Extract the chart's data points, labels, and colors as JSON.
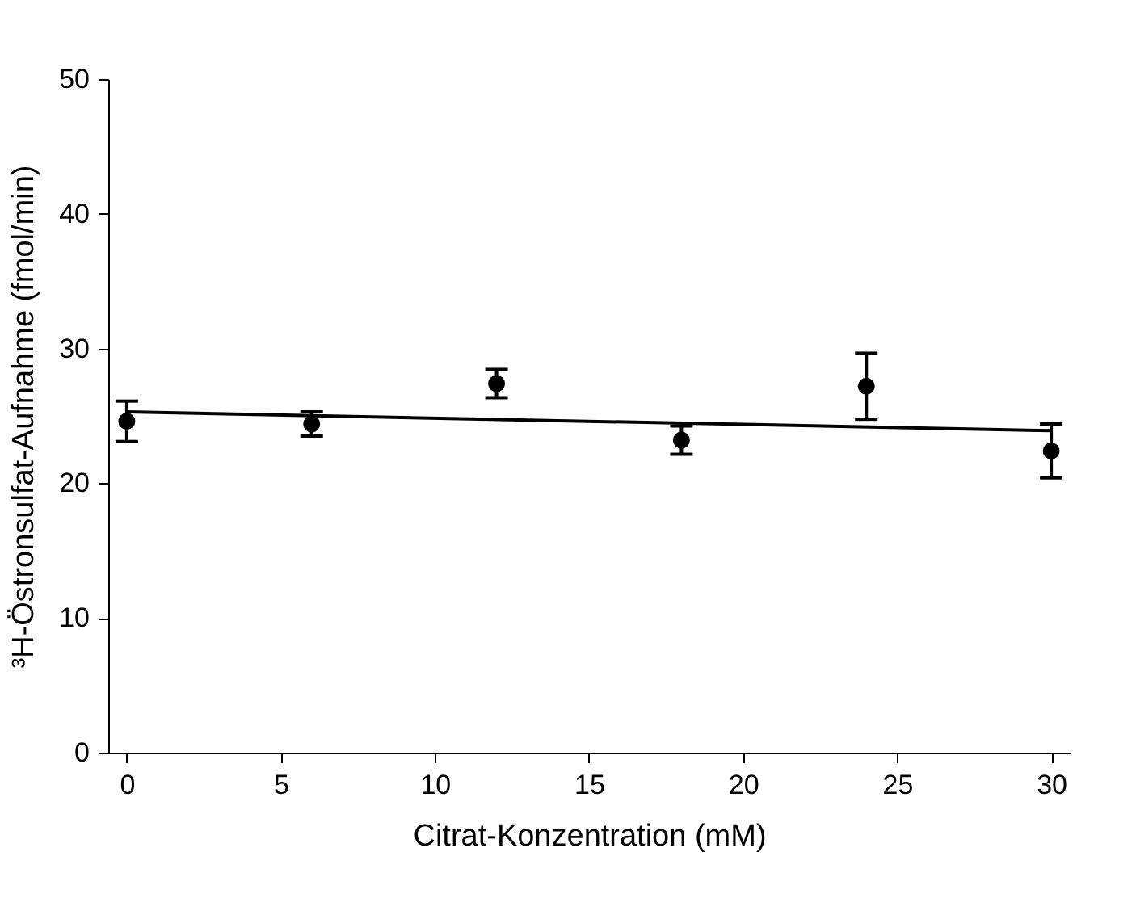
{
  "chart_data": {
    "type": "scatter",
    "xlabel": "Citrat-Konzentration (mM)",
    "ylabel": "³H-Östronsulfat-Aufnahme (fmol/min)",
    "x": [
      0,
      6,
      12,
      18,
      24,
      30
    ],
    "series": [
      {
        "color": "#000000",
        "values": [
          24.6,
          24.4,
          27.4,
          23.2,
          27.2,
          22.4
        ],
        "errors": [
          1.5,
          0.9,
          1.05,
          1.05,
          2.45,
          2.0
        ],
        "marker": "circle"
      },
      {
        "type": "line",
        "color": "#000000",
        "x": [
          0,
          30
        ],
        "values": [
          25.3,
          23.9
        ],
        "marker": "none",
        "line_style": "solid"
      }
    ],
    "xlim": [
      -0.6,
      30.6
    ],
    "xticks": [
      0,
      5,
      10,
      15,
      20,
      25,
      30
    ],
    "ylim": [
      0,
      50
    ],
    "yticks": [
      0,
      10,
      20,
      30,
      40,
      50
    ],
    "grid": false
  }
}
